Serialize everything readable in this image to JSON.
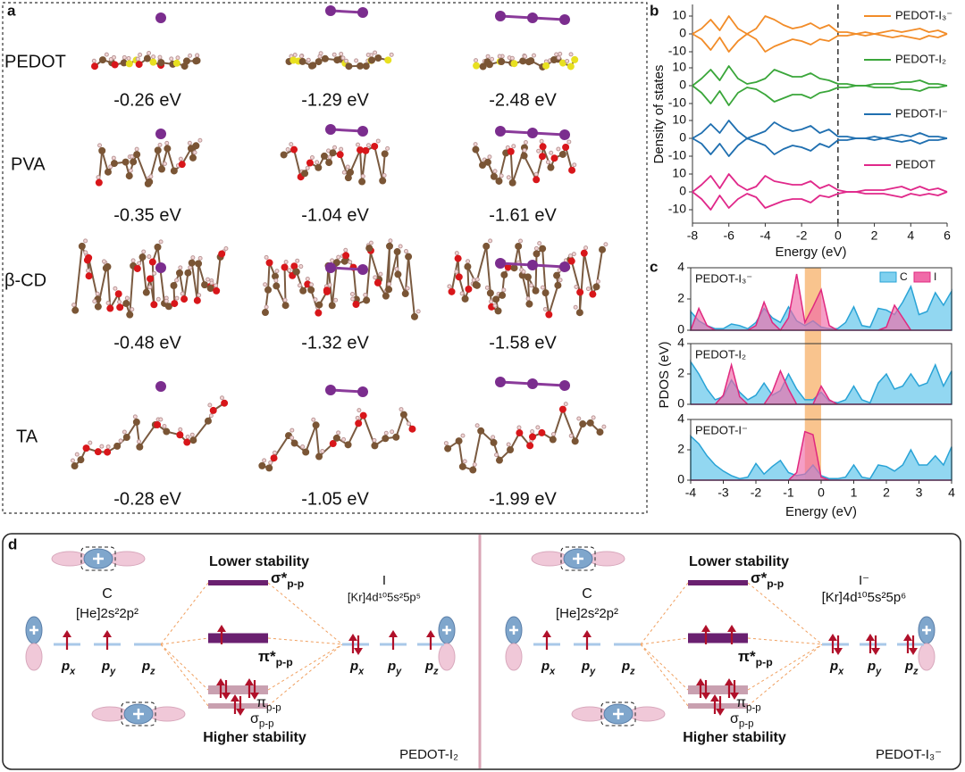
{
  "panel_labels": [
    "a",
    "b",
    "c",
    "d"
  ],
  "panel_a": {
    "rows": [
      {
        "label": "PEDOT",
        "energies": [
          "-0.26 eV",
          "-1.29 eV",
          "-2.48 eV"
        ]
      },
      {
        "label": "PVA",
        "energies": [
          "-0.35 eV",
          "-1.04 eV",
          "-1.61 eV"
        ]
      },
      {
        "label": "β-CD",
        "energies": [
          "-0.48 eV",
          "-1.32 eV",
          "-1.58 eV"
        ]
      },
      {
        "label": "TA",
        "energies": [
          "-0.28 eV",
          "-1.05 eV",
          "-1.99 eV"
        ]
      }
    ]
  },
  "chart_data": [
    {
      "type": "line",
      "xlabel": "Energy (eV)",
      "ylabel": "Density of states",
      "x": [
        -8,
        -7.5,
        -7,
        -6.5,
        -6,
        -5.5,
        -5,
        -4.5,
        -4,
        -3.5,
        -3,
        -2.5,
        -2,
        -1.5,
        -1,
        -0.5,
        0,
        0.5,
        1,
        1.5,
        2,
        2.5,
        3,
        3.5,
        4,
        4.5,
        5,
        5.5,
        6
      ],
      "xlim": [
        -8,
        6
      ],
      "xticks": [
        -8,
        -6,
        -4,
        -2,
        0,
        2,
        4,
        6
      ],
      "ylim": [
        -15,
        15
      ],
      "yticks": [
        -10,
        0,
        10
      ],
      "zero_line": 0,
      "legend": "right",
      "series": [
        {
          "name": "PEDOT-I₃⁻",
          "color": "#f28c28",
          "values": [
            0,
            3,
            8,
            2,
            10,
            3,
            0,
            3,
            10,
            8,
            5,
            3,
            4,
            6,
            3,
            5,
            1,
            1,
            0,
            1,
            0,
            1,
            2,
            1,
            2,
            3,
            1,
            2,
            0
          ],
          "values_down": [
            0,
            -3,
            -9,
            -2,
            -10,
            -4,
            0,
            -3,
            -10,
            -7,
            -5,
            -3,
            -4,
            -6,
            -3,
            -4,
            -1,
            -1,
            0,
            -1,
            0,
            -1,
            -2,
            -1,
            -2,
            -3,
            -1,
            -2,
            0
          ]
        },
        {
          "name": "PEDOT-I₂",
          "color": "#3aa63a",
          "values": [
            0,
            4,
            9,
            3,
            11,
            4,
            1,
            2,
            4,
            9,
            7,
            5,
            5,
            7,
            4,
            3,
            1,
            1,
            0,
            0,
            1,
            1,
            1,
            2,
            2,
            3,
            1,
            1,
            0
          ],
          "values_down": [
            0,
            -4,
            -10,
            -3,
            -11,
            -4,
            -1,
            -2,
            -5,
            -9,
            -7,
            -5,
            -5,
            -7,
            -4,
            -3,
            -1,
            -1,
            0,
            0,
            -1,
            -1,
            -1,
            -2,
            -2,
            -3,
            -1,
            -1,
            0
          ]
        },
        {
          "name": "PEDOT-I⁻",
          "color": "#1f6fb0",
          "values": [
            0,
            3,
            8,
            3,
            10,
            4,
            0,
            2,
            4,
            9,
            6,
            4,
            5,
            7,
            3,
            5,
            1,
            1,
            0,
            0,
            1,
            0,
            1,
            2,
            1,
            3,
            1,
            1,
            0
          ],
          "values_down": [
            0,
            -3,
            -9,
            -3,
            -10,
            -4,
            0,
            -2,
            -4,
            -9,
            -6,
            -4,
            -5,
            -7,
            -3,
            -5,
            -1,
            -1,
            0,
            0,
            -1,
            0,
            -1,
            -2,
            -1,
            -3,
            -1,
            -1,
            0
          ]
        },
        {
          "name": "PEDOT",
          "color": "#e0288a",
          "values": [
            0,
            4,
            9,
            2,
            10,
            4,
            1,
            3,
            9,
            6,
            5,
            4,
            4,
            6,
            2,
            4,
            1,
            0,
            0,
            1,
            1,
            1,
            2,
            3,
            1,
            3,
            1,
            2,
            0
          ],
          "values_down": [
            0,
            -4,
            -10,
            -2,
            -9,
            -4,
            -1,
            -3,
            -9,
            -7,
            -5,
            -4,
            -4,
            -6,
            -2,
            -3,
            -1,
            0,
            0,
            -1,
            -1,
            -1,
            -2,
            -3,
            -1,
            -2,
            -1,
            -2,
            0
          ]
        }
      ]
    },
    {
      "type": "area",
      "xlabel": "Energy (eV)",
      "ylabel": "PDOS (eV)",
      "x": [
        -4,
        -3.75,
        -3.5,
        -3.25,
        -3,
        -2.75,
        -2.5,
        -2.25,
        -2,
        -1.75,
        -1.5,
        -1.25,
        -1,
        -0.75,
        -0.5,
        -0.25,
        0,
        0.25,
        0.5,
        0.75,
        1,
        1.25,
        1.5,
        1.75,
        2,
        2.25,
        2.5,
        2.75,
        3,
        3.25,
        3.5,
        3.75,
        4
      ],
      "xlim": [
        -4,
        4
      ],
      "xticks": [
        -4,
        -3,
        -2,
        -1,
        0,
        1,
        2,
        3,
        4
      ],
      "ylim": [
        0,
        4
      ],
      "yticks": [
        0,
        2,
        4
      ],
      "highlight": [
        -0.5,
        0
      ],
      "legend": "upper right",
      "series": [
        {
          "name": "C",
          "color": "#29a3d6"
        },
        {
          "name": "I",
          "color": "#e0287f"
        }
      ],
      "panels": [
        {
          "label": "PEDOT-I₃⁻",
          "values": [
            [
              1.2,
              0.6,
              0.3,
              0.1,
              0.1,
              0.4,
              0.3,
              0.1,
              0.5,
              1.4,
              0.8,
              0.5,
              1.5,
              0.6,
              0.3,
              0.6,
              0.2,
              0.1,
              0.1,
              0.5,
              1.5,
              0.3,
              0.2,
              1.4,
              1.3,
              1.0,
              1.8,
              2.8,
              1.0,
              1.2,
              2.4,
              1.6,
              2.5
            ],
            [
              0,
              1.4,
              0.3,
              0,
              0,
              0,
              0,
              0,
              0.3,
              1.8,
              0.5,
              0,
              0.8,
              3.6,
              0.5,
              1.5,
              2.6,
              0.3,
              0,
              0,
              0,
              0,
              0,
              0,
              0.2,
              1.6,
              0.8,
              0,
              0,
              0,
              0,
              0,
              0
            ]
          ]
        },
        {
          "label": "PEDOT-I₂",
          "values": [
            [
              2.8,
              2.0,
              1.0,
              0.3,
              0.5,
              1.6,
              0.8,
              0.3,
              0.6,
              1.4,
              0.6,
              0.9,
              2.0,
              1.0,
              0.3,
              0.3,
              0.8,
              0.2,
              0.1,
              0.3,
              1.2,
              0.3,
              0.1,
              1.4,
              2.0,
              1.0,
              1.2,
              2.0,
              1.2,
              1.4,
              2.6,
              1.2,
              2.2
            ],
            [
              0,
              0,
              0,
              0,
              0.6,
              2.6,
              0.5,
              0,
              0,
              0,
              0.8,
              2.2,
              1.0,
              0,
              0,
              0,
              1.2,
              0.3,
              0,
              0,
              0,
              0,
              0,
              0,
              0,
              0,
              0,
              0,
              0,
              0,
              0,
              0,
              0
            ]
          ]
        },
        {
          "label": "PEDOT-I⁻",
          "values": [
            [
              2.9,
              2.4,
              1.6,
              1.0,
              0.6,
              0.3,
              0.1,
              0.2,
              1.1,
              0.4,
              0.9,
              1.3,
              0.5,
              0.3,
              0.4,
              1.0,
              0.3,
              0.1,
              0.1,
              0.2,
              1.0,
              0.2,
              0.1,
              1.0,
              0.9,
              0.6,
              1.0,
              2.0,
              1.0,
              1.0,
              1.6,
              1.0,
              2.2
            ],
            [
              0,
              0,
              0,
              0,
              0,
              0,
              0,
              0,
              0,
              0,
              0,
              0,
              0,
              0.5,
              3.2,
              3.0,
              0.2,
              0,
              0,
              0,
              0,
              0,
              0,
              0,
              0,
              0,
              0,
              0,
              0,
              0,
              0,
              0,
              0
            ]
          ]
        }
      ]
    }
  ],
  "panel_d": {
    "diagrams": [
      {
        "lower": "Lower stability",
        "higher": "Higher stability",
        "sigma_star": {
          "base": "σ*",
          "sub": "p-p"
        },
        "pi_star": {
          "base": "π*",
          "sub": "p-p"
        },
        "pi": {
          "base": "π",
          "sub": "p-p"
        },
        "sigma": {
          "base": "σ",
          "sub": "p-p"
        },
        "left_atom": "C",
        "left_config": "[He]2s²2p²",
        "left_orbitals": [
          {
            "base": "p",
            "sub": "x"
          },
          {
            "base": "p",
            "sub": "y"
          },
          {
            "base": "p",
            "sub": "z"
          }
        ],
        "right_atom": "I",
        "right_config": "[Kr]4d¹⁰5s²5p⁵",
        "right_orbitals": [
          {
            "base": "p",
            "sub": "x"
          },
          {
            "base": "p",
            "sub": "y"
          },
          {
            "base": "p",
            "sub": "z"
          }
        ],
        "name": "PEDOT-I₂"
      },
      {
        "lower": "Lower stability",
        "higher": "Higher stability",
        "sigma_star": {
          "base": "σ*",
          "sub": "p-p"
        },
        "pi_star": {
          "base": "π*",
          "sub": "p-p"
        },
        "pi": {
          "base": "π",
          "sub": "p-p"
        },
        "sigma": {
          "base": "σ",
          "sub": "p-p"
        },
        "left_atom": "C",
        "left_config": "[He]2s²2p²",
        "left_orbitals": [
          {
            "base": "p",
            "sub": "x"
          },
          {
            "base": "p",
            "sub": "y"
          },
          {
            "base": "p",
            "sub": "z"
          }
        ],
        "right_atom": "I⁻",
        "right_config": "[Kr]4d¹⁰5s²5p⁶",
        "right_orbitals": [
          {
            "base": "p",
            "sub": "x"
          },
          {
            "base": "p",
            "sub": "y"
          },
          {
            "base": "p",
            "sub": "z"
          }
        ],
        "name": "PEDOT-I₃⁻"
      }
    ]
  }
}
